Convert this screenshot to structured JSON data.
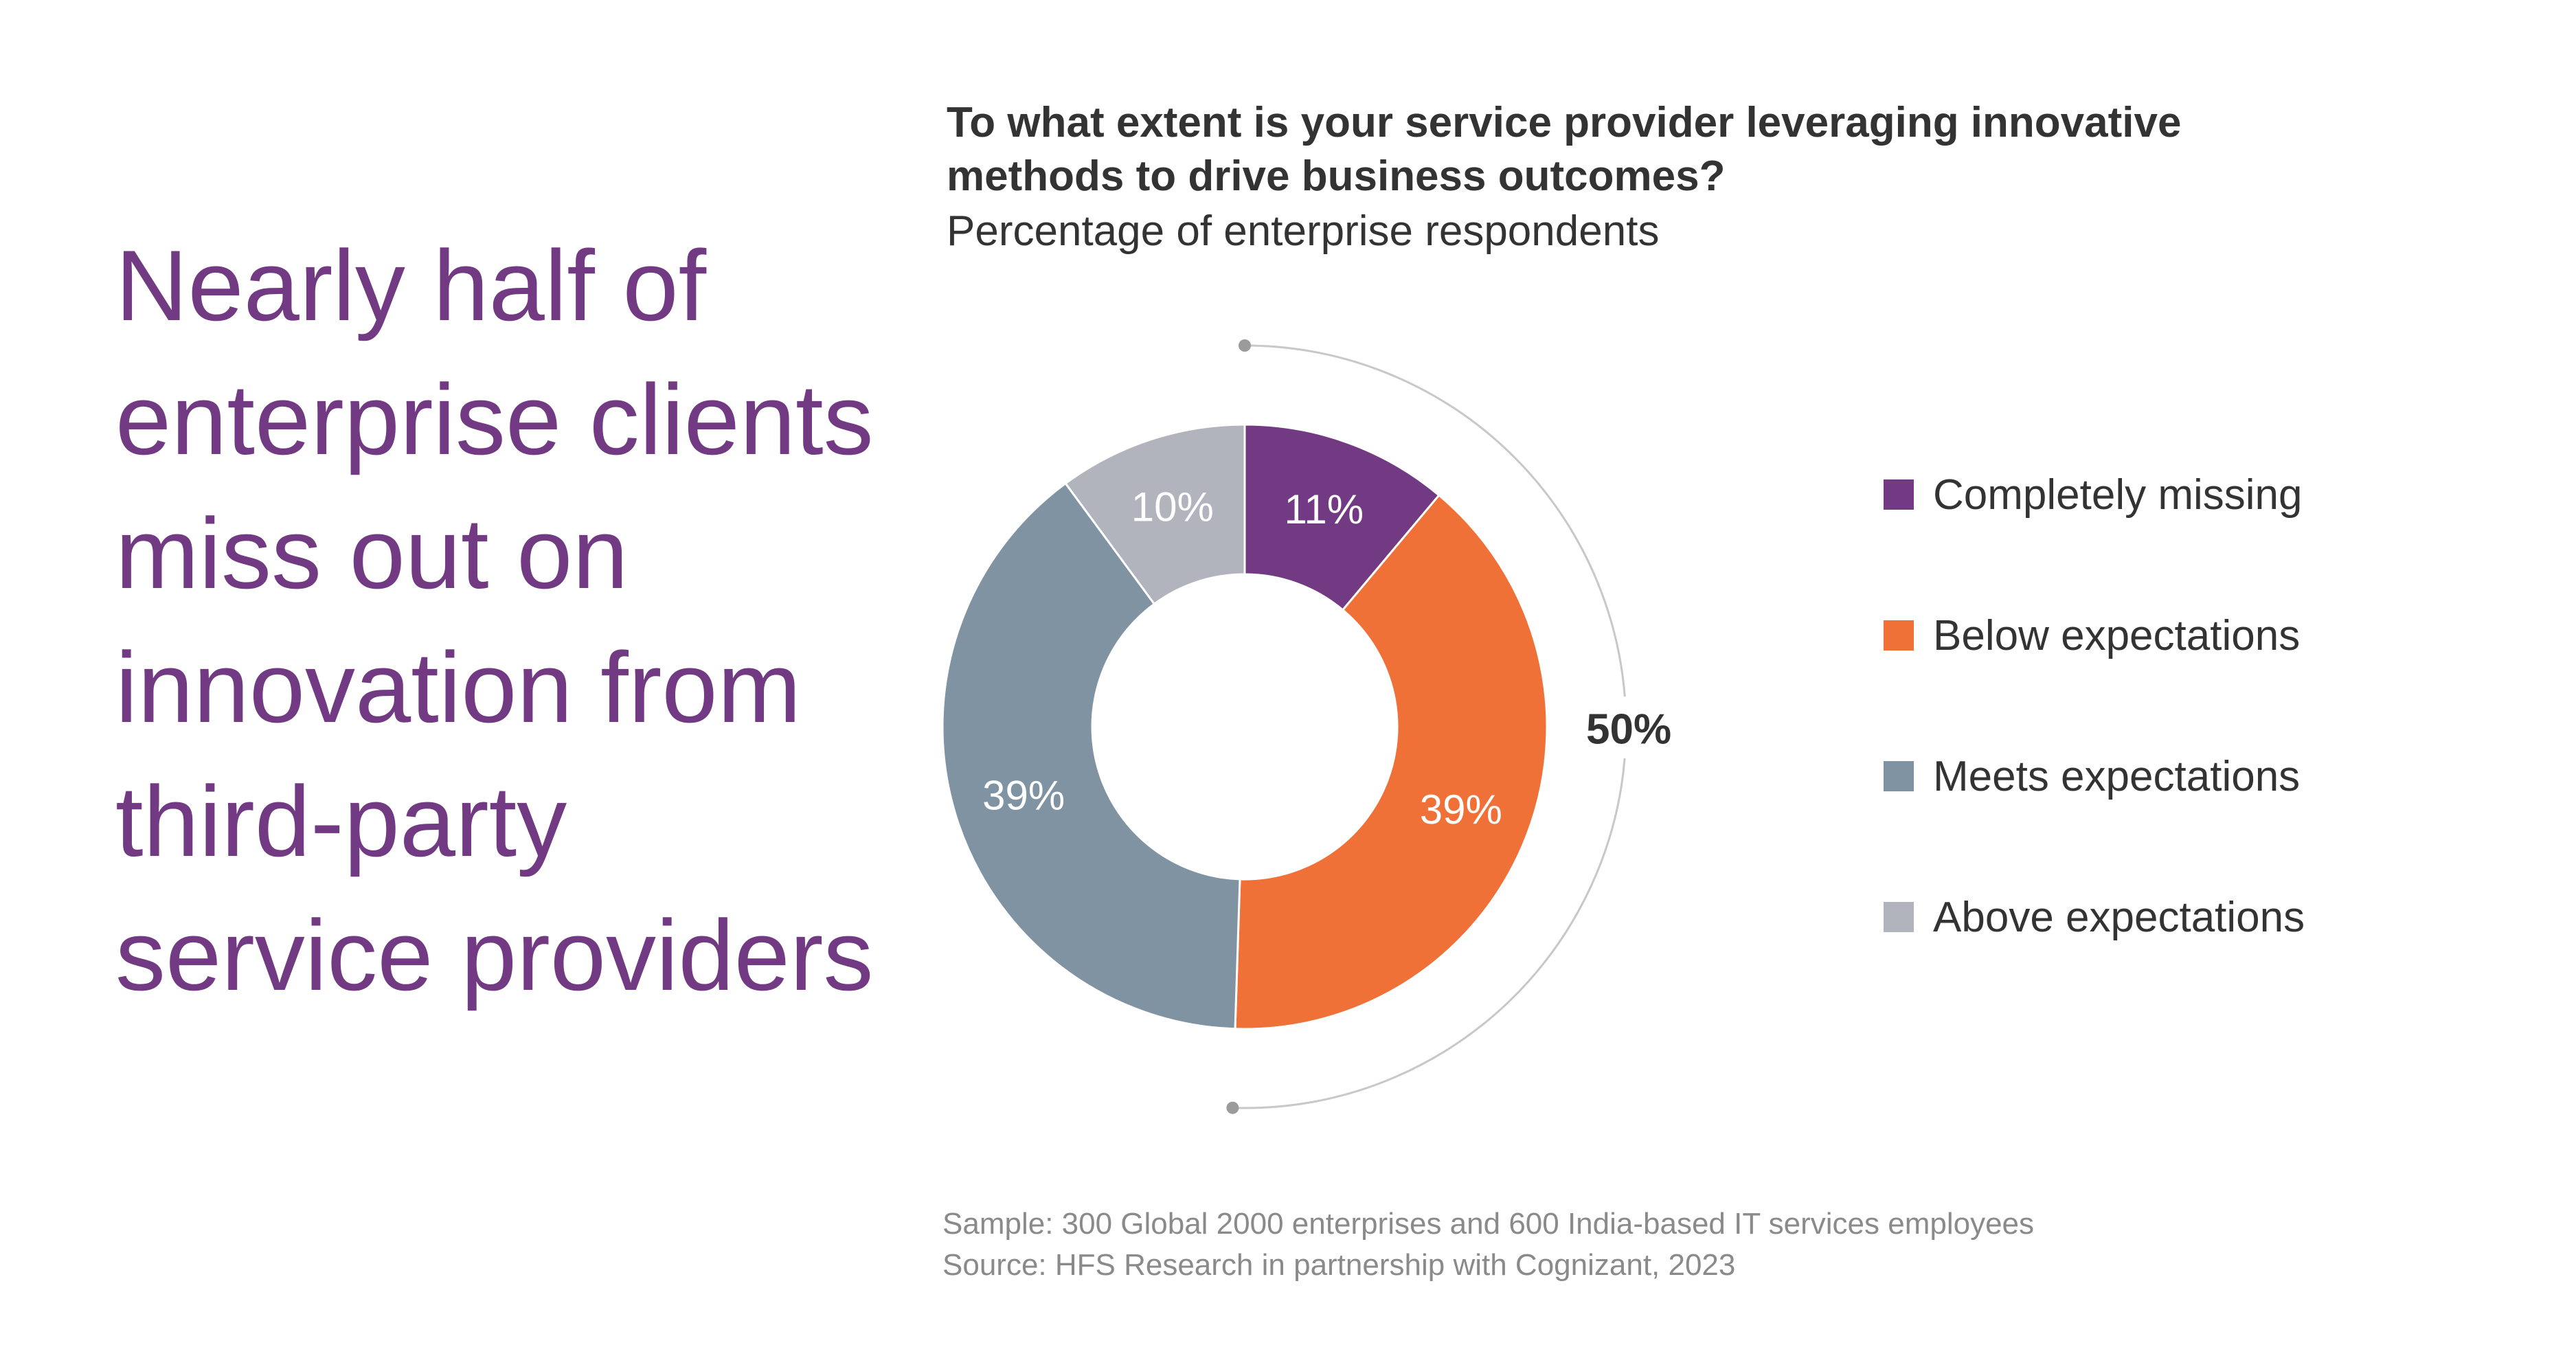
{
  "headline": "Nearly half of enterprise clients miss out on innovation from third-party service providers",
  "chart_data": {
    "type": "pie",
    "title": "To what extent is your service provider leveraging innovative methods to drive business outcomes?",
    "subtitle": "Percentage of enterprise respondents",
    "unit": "%",
    "slices": [
      {
        "name": "Completely missing",
        "value": 11,
        "label": "11%",
        "color": "#713A82"
      },
      {
        "name": "Below expectations",
        "value": 39,
        "label": "39%",
        "color": "#F07138"
      },
      {
        "name": "Meets expectations",
        "value": 39,
        "label": "39%",
        "color": "#7F93A3"
      },
      {
        "name": "Above expectations",
        "value": 10,
        "label": "10%",
        "color": "#B1B3BD"
      }
    ],
    "annotation": {
      "label": "50%",
      "spans": [
        "Completely missing",
        "Below expectations"
      ]
    },
    "legend": "right"
  },
  "footnote": {
    "sample": "Sample: 300 Global 2000 enterprises and 600 India-based IT services employees",
    "source": "Source: HFS Research in partnership with Cognizant, 2023"
  }
}
